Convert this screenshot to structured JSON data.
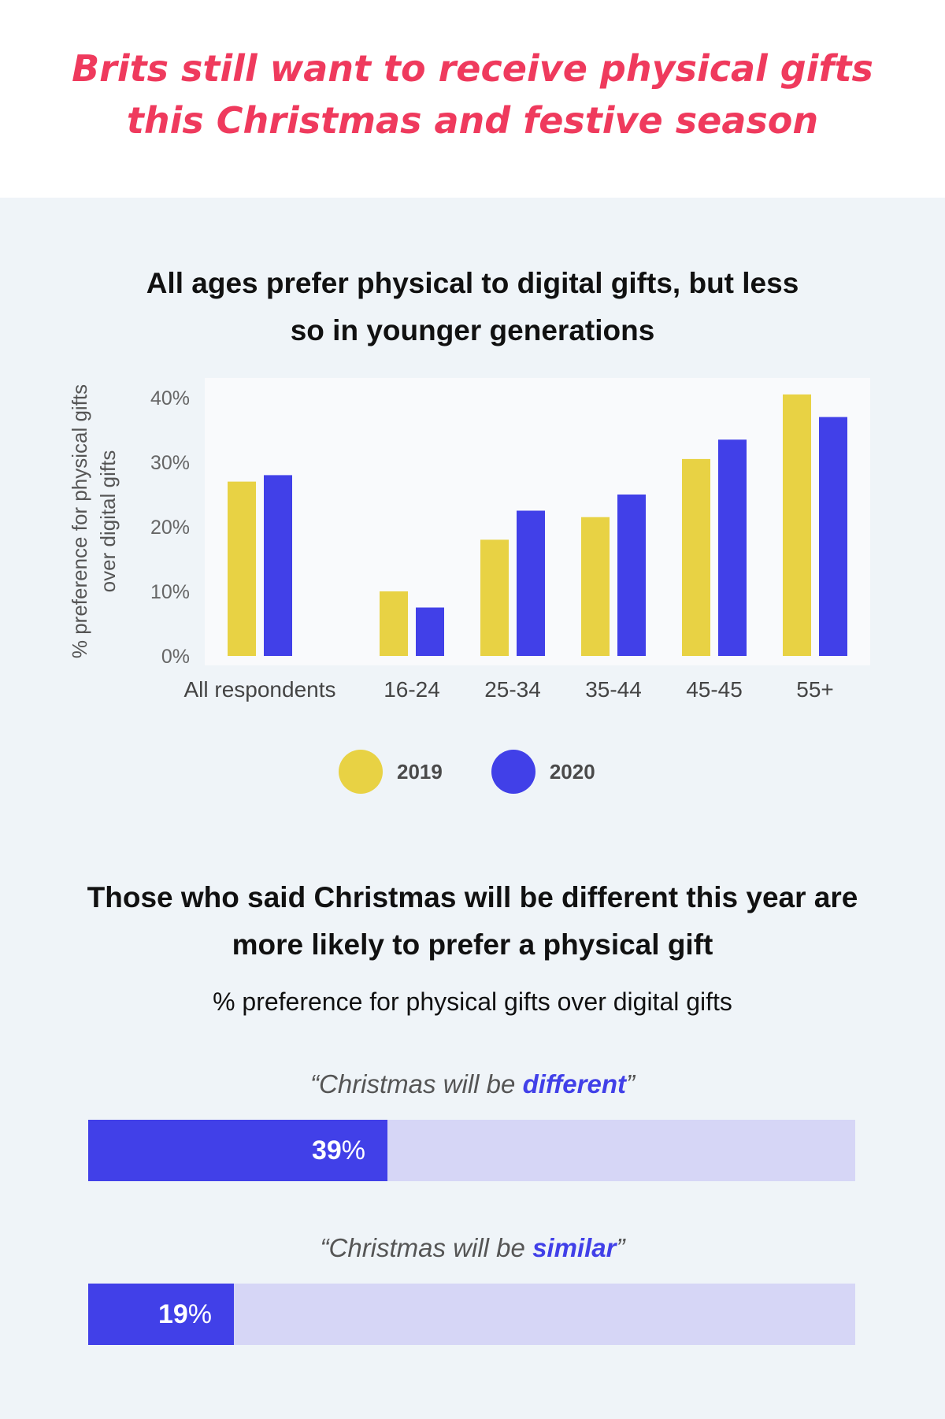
{
  "header": {
    "title_line1": "Brits still want to receive physical gifts",
    "title_line2": "this Christmas and festive season"
  },
  "chart1": {
    "title_line1": "All ages prefer physical to digital gifts, but less",
    "title_line2": "so in younger generations"
  },
  "chart2": {
    "title_line1": "Those who said Christmas will be different this year are",
    "title_line2": "more likely to prefer a physical gift",
    "subtitle": "% preference for physical gifts over digital gifts"
  },
  "colors": {
    "title": "#ef3a5d",
    "series_2019": "#e8d244",
    "series_2020": "#4140e8",
    "track": "#d6d6f6",
    "plot_bg": "#f9fafc"
  },
  "chart_data": [
    {
      "type": "bar",
      "title": "All ages prefer physical to digital gifts, but less so in younger generations",
      "xlabel": "",
      "ylabel": "% preference for physical gifts over digital gifts",
      "ylabel_line1": "% preference for physical gifts",
      "ylabel_line2": "over digital gifts",
      "categories": [
        "All respondents",
        "16-24",
        "25-34",
        "35-44",
        "45-45",
        "55+"
      ],
      "series": [
        {
          "name": "2019",
          "values": [
            27,
            10,
            18,
            21.5,
            30.5,
            40.5
          ]
        },
        {
          "name": "2020",
          "values": [
            28,
            7.5,
            22.5,
            25,
            33.5,
            37
          ]
        }
      ],
      "ylim": [
        0,
        40
      ],
      "yticks": [
        "0%",
        "10%",
        "20%",
        "30%",
        "40%"
      ],
      "ytick_values": [
        0,
        10,
        20,
        30,
        40
      ],
      "grid": false,
      "legend": "bottom"
    },
    {
      "type": "bar",
      "orientation": "horizontal",
      "title": "Those who said Christmas will be different this year are more likely to prefer a physical gift",
      "subtitle": "% preference for physical gifts over digital gifts",
      "categories": [
        "Christmas will be different",
        "Christmas will be similar"
      ],
      "values": [
        39,
        19
      ],
      "unit": "%",
      "xlim": [
        0,
        100
      ],
      "bars": [
        {
          "quote_open": "“Christmas will be ",
          "keyword": "different",
          "quote_close": "”",
          "value": 39,
          "value_text": "39",
          "unit": "%"
        },
        {
          "quote_open": "“Christmas will be ",
          "keyword": "similar",
          "quote_close": "”",
          "value": 19,
          "value_text": "19",
          "unit": "%"
        }
      ]
    }
  ]
}
